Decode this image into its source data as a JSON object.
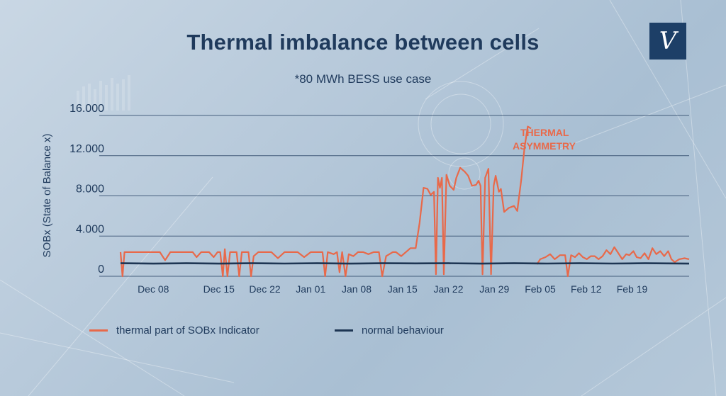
{
  "title": "Thermal imbalance between cells",
  "subtitle": "*80 MWh BESS use case",
  "logo": "V",
  "colors": {
    "thermal": "#e8694a",
    "normal": "#1d3553",
    "title": "#1f3a5c",
    "grid": "#1f3a5c",
    "logo_bg": "#1d3f67"
  },
  "annotation": [
    "THERMAL",
    "ASYMMETRY"
  ],
  "legend": [
    {
      "label": "thermal part of SOBx Indicator",
      "color": "#e8694a"
    },
    {
      "label": "normal behaviour",
      "color": "#1d3553"
    }
  ],
  "chart_data": {
    "type": "line",
    "title": "Thermal imbalance between cells",
    "subtitle": "*80 MWh BESS use case",
    "ylabel": "SOBx (State of Balance x)",
    "xlabel": "",
    "ylim": [
      0,
      16000
    ],
    "yticks": [
      0,
      4000,
      8000,
      12000,
      16000
    ],
    "ytick_labels": [
      "0",
      "4.000",
      "8.000",
      "12.000",
      "16.000"
    ],
    "xlim": [
      0,
      84
    ],
    "xticks": [
      5,
      15,
      22,
      29,
      36,
      43,
      50,
      57,
      64,
      71,
      78
    ],
    "xtick_labels": [
      "Dec 08",
      "Dec 15",
      "Dec 22",
      "Jan 01",
      "Jan 08",
      "Jan 15",
      "Jan 22",
      "Jan 29",
      "Feb 05",
      "Feb 12",
      "Feb 19"
    ],
    "grid": true,
    "legend_position": "bottom",
    "series": [
      {
        "name": "thermal part of SOBx Indicator",
        "color": "#e8694a",
        "segments": [
          [
            [
              0,
              2400
            ],
            [
              0.3,
              0
            ],
            [
              0.6,
              2400
            ],
            [
              1,
              2400
            ],
            [
              2,
              2400
            ],
            [
              3,
              2400
            ],
            [
              4,
              2400
            ],
            [
              5,
              2400
            ],
            [
              6,
              2400
            ],
            [
              6.8,
              1600
            ],
            [
              7.6,
              2400
            ],
            [
              9,
              2400
            ],
            [
              10,
              2400
            ],
            [
              11,
              2400
            ],
            [
              11.6,
              1900
            ],
            [
              12.3,
              2400
            ],
            [
              13.5,
              2400
            ],
            [
              14.2,
              1900
            ],
            [
              14.8,
              2400
            ],
            [
              15.2,
              2400
            ],
            [
              15.6,
              0
            ],
            [
              15.9,
              2700
            ],
            [
              16.3,
              0
            ],
            [
              16.7,
              2400
            ],
            [
              17,
              2400
            ],
            [
              17.7,
              2400
            ],
            [
              18.1,
              0
            ],
            [
              18.5,
              2400
            ],
            [
              19.5,
              2400
            ],
            [
              19.9,
              0
            ],
            [
              20.3,
              2000
            ],
            [
              21,
              2400
            ],
            [
              22,
              2400
            ],
            [
              23,
              2400
            ],
            [
              24,
              1800
            ],
            [
              25,
              2400
            ],
            [
              26,
              2400
            ],
            [
              27,
              2400
            ],
            [
              28,
              1900
            ],
            [
              29,
              2400
            ],
            [
              30,
              2400
            ],
            [
              30.8,
              2400
            ],
            [
              31.2,
              0
            ],
            [
              31.6,
              2400
            ],
            [
              32.5,
              2200
            ],
            [
              33,
              2400
            ],
            [
              33.4,
              400
            ],
            [
              33.8,
              2400
            ],
            [
              34.3,
              0
            ],
            [
              34.8,
              2200
            ],
            [
              35.5,
              2000
            ],
            [
              36.2,
              2400
            ],
            [
              37,
              2400
            ],
            [
              37.8,
              2200
            ],
            [
              38.6,
              2400
            ],
            [
              39.4,
              2400
            ],
            [
              39.9,
              0
            ],
            [
              40.5,
              2000
            ],
            [
              41.5,
              2400
            ],
            [
              42,
              2400
            ],
            [
              42.8,
              2000
            ],
            [
              43.5,
              2400
            ],
            [
              44.2,
              2800
            ],
            [
              45,
              2800
            ],
            [
              45.6,
              5300
            ],
            [
              46.2,
              8800
            ],
            [
              46.8,
              8700
            ],
            [
              47.3,
              8100
            ],
            [
              47.8,
              8400
            ],
            [
              48.1,
              200
            ],
            [
              48.4,
              9800
            ],
            [
              48.7,
              8800
            ],
            [
              49,
              9800
            ],
            [
              49.3,
              200
            ],
            [
              49.7,
              10100
            ],
            [
              50.2,
              9000
            ],
            [
              50.8,
              8600
            ],
            [
              51.2,
              9800
            ],
            [
              51.8,
              10800
            ],
            [
              52.5,
              10400
            ],
            [
              53,
              10000
            ],
            [
              53.6,
              9000
            ],
            [
              54.2,
              9100
            ],
            [
              54.6,
              9500
            ],
            [
              54.9,
              9000
            ],
            [
              55.2,
              200
            ],
            [
              55.6,
              9800
            ],
            [
              56.1,
              10700
            ],
            [
              56.5,
              200
            ],
            [
              56.9,
              9000
            ],
            [
              57.2,
              10000
            ],
            [
              57.7,
              8400
            ],
            [
              58,
              8700
            ],
            [
              58.5,
              6400
            ],
            [
              59.2,
              6800
            ],
            [
              60,
              7000
            ],
            [
              60.5,
              6500
            ],
            [
              61.1,
              9600
            ],
            [
              61.6,
              12800
            ],
            [
              62.1,
              14900
            ],
            [
              62.6,
              14700
            ]
          ],
          [
            [
              63.5,
              1200
            ],
            [
              64,
              1700
            ],
            [
              64.8,
              1900
            ],
            [
              65.5,
              2200
            ],
            [
              66.2,
              1700
            ],
            [
              67,
              2100
            ],
            [
              67.8,
              2100
            ],
            [
              68.2,
              0
            ],
            [
              68.7,
              2100
            ],
            [
              69.3,
              1900
            ],
            [
              69.9,
              2300
            ],
            [
              70.5,
              1900
            ],
            [
              71.1,
              1700
            ],
            [
              71.7,
              2000
            ],
            [
              72.3,
              2000
            ],
            [
              72.9,
              1700
            ],
            [
              73.5,
              2000
            ],
            [
              74.1,
              2600
            ],
            [
              74.7,
              2200
            ],
            [
              75.3,
              2900
            ],
            [
              75.9,
              2300
            ],
            [
              76.5,
              1700
            ],
            [
              77.1,
              2200
            ],
            [
              77.6,
              2100
            ],
            [
              78.2,
              2500
            ],
            [
              78.7,
              1900
            ],
            [
              79.3,
              1800
            ],
            [
              79.9,
              2300
            ],
            [
              80.5,
              1700
            ],
            [
              81.1,
              2800
            ],
            [
              81.7,
              2200
            ],
            [
              82.3,
              2500
            ],
            [
              82.9,
              2000
            ],
            [
              83.5,
              2500
            ],
            [
              84,
              1700
            ],
            [
              84.5,
              1400
            ],
            [
              85.2,
              1700
            ],
            [
              86,
              1800
            ],
            [
              86.7,
              1700
            ]
          ]
        ]
      },
      {
        "name": "normal behaviour",
        "color": "#1d3553",
        "segments": [
          [
            [
              0,
              1300
            ],
            [
              5,
              1260
            ],
            [
              10,
              1300
            ],
            [
              15,
              1260
            ],
            [
              20,
              1300
            ],
            [
              25,
              1270
            ],
            [
              30,
              1300
            ],
            [
              35,
              1260
            ],
            [
              40,
              1300
            ],
            [
              45,
              1280
            ],
            [
              50,
              1300
            ],
            [
              55,
              1260
            ],
            [
              60,
              1300
            ],
            [
              65,
              1270
            ],
            [
              70,
              1300
            ],
            [
              75,
              1270
            ],
            [
              80,
              1300
            ],
            [
              86.7,
              1260
            ]
          ]
        ]
      }
    ]
  }
}
